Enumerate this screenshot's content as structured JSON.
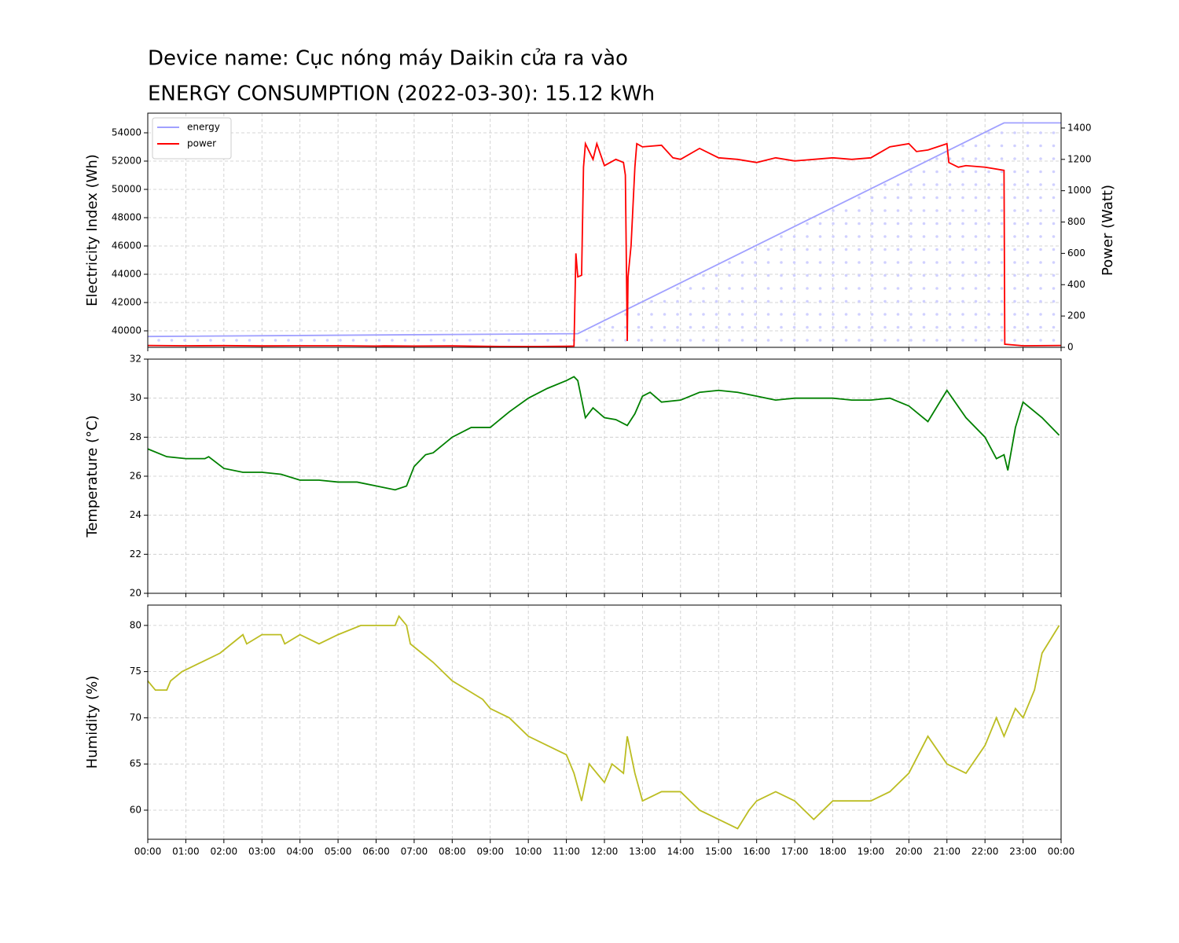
{
  "chart_data": [
    {
      "type": "line",
      "title": "Device name: Cục nóng máy Daikin cửa ra vào",
      "subtitle": "ENERGY CONSUMPTION (2022-03-30): 15.12 kWh",
      "ylabel": "Electricity Index (Wh)",
      "y2label": "Power (Watt)",
      "ylim": [
        38833,
        55389
      ],
      "yticks": [
        40000,
        42000,
        44000,
        46000,
        48000,
        50000,
        52000,
        54000
      ],
      "y2lim": [
        0,
        1495
      ],
      "y2ticks": [
        0,
        200,
        400,
        600,
        800,
        1000,
        1200,
        1400
      ],
      "grid": true,
      "legend": "upper-left",
      "series": [
        {
          "name": "energy",
          "color": "#a0a0ff",
          "hatch": "dots",
          "x": [
            0,
            11.3,
            22.5,
            24
          ],
          "values": [
            39600,
            39800,
            54700,
            54700
          ]
        },
        {
          "name": "power",
          "color": "#ff0000",
          "axis": "y2",
          "x": [
            0,
            1,
            2,
            3,
            4,
            5,
            6,
            6.2,
            7,
            8,
            9,
            10,
            11,
            11.2,
            11.25,
            11.3,
            11.4,
            11.45,
            11.5,
            11.7,
            11.8,
            12,
            12.3,
            12.5,
            12.55,
            12.6,
            12.62,
            12.7,
            12.8,
            12.85,
            13,
            13.5,
            13.8,
            14,
            14.5,
            15,
            15.5,
            16,
            16.5,
            17,
            17.5,
            18,
            18.5,
            19,
            19.5,
            20,
            20.2,
            20.5,
            21,
            21.05,
            21.3,
            21.5,
            22,
            22.5,
            22.52,
            23,
            24
          ],
          "values": [
            12,
            10,
            11,
            9,
            10,
            10,
            8,
            9,
            8,
            9,
            6,
            5,
            7,
            8,
            600,
            450,
            460,
            1150,
            1300,
            1200,
            1300,
            1160,
            1200,
            1180,
            1100,
            40,
            450,
            650,
            1150,
            1300,
            1280,
            1290,
            1210,
            1200,
            1270,
            1210,
            1200,
            1180,
            1210,
            1190,
            1200,
            1210,
            1200,
            1210,
            1280,
            1300,
            1250,
            1260,
            1300,
            1180,
            1150,
            1160,
            1150,
            1130,
            20,
            10,
            12
          ]
        }
      ]
    },
    {
      "type": "line",
      "ylabel": "Temperature (°C)",
      "ylim": [
        20,
        32
      ],
      "yticks": [
        20,
        22,
        24,
        26,
        28,
        30,
        32
      ],
      "grid": true,
      "series": [
        {
          "color": "#008000",
          "x": [
            0,
            0.5,
            1,
            1.5,
            1.6,
            2,
            2.5,
            3,
            3.5,
            4,
            4.5,
            5,
            5.5,
            6,
            6.5,
            6.8,
            7,
            7.3,
            7.5,
            8,
            8.5,
            9,
            9.5,
            10,
            10.5,
            11,
            11.2,
            11.3,
            11.5,
            11.7,
            12,
            12.3,
            12.6,
            12.8,
            13,
            13.2,
            13.5,
            14,
            14.5,
            15,
            15.5,
            16,
            16.5,
            17,
            17.5,
            18,
            18.5,
            19,
            19.5,
            20,
            20.5,
            21,
            21.5,
            22,
            22.3,
            22.5,
            22.6,
            22.8,
            23,
            23.5,
            23.95
          ],
          "values": [
            27.4,
            27.0,
            26.9,
            26.9,
            27.0,
            26.4,
            26.2,
            26.2,
            26.1,
            25.8,
            25.8,
            25.7,
            25.7,
            25.5,
            25.3,
            25.5,
            26.5,
            27.1,
            27.2,
            28.0,
            28.5,
            28.5,
            29.3,
            30.0,
            30.5,
            30.9,
            31.1,
            30.9,
            29.0,
            29.5,
            29.0,
            28.9,
            28.6,
            29.2,
            30.1,
            30.3,
            29.8,
            29.9,
            30.3,
            30.4,
            30.3,
            30.1,
            29.9,
            30.0,
            30.0,
            30.0,
            29.9,
            29.9,
            30.0,
            29.6,
            28.8,
            30.4,
            29.0,
            28.0,
            26.9,
            27.1,
            26.3,
            28.5,
            29.8,
            29.0,
            28.1
          ]
        }
      ]
    },
    {
      "type": "line",
      "ylabel": "Humidity (%)",
      "ylim": [
        56.85,
        82.2
      ],
      "yticks": [
        60,
        65,
        70,
        75,
        80
      ],
      "grid": true,
      "xlim": [
        0,
        24
      ],
      "xticks": [
        {
          "value": 0,
          "label": "00:00"
        },
        {
          "value": 1,
          "label": "01:00"
        },
        {
          "value": 2,
          "label": "02:00"
        },
        {
          "value": 3,
          "label": "03:00"
        },
        {
          "value": 4,
          "label": "04:00"
        },
        {
          "value": 5,
          "label": "05:00"
        },
        {
          "value": 6,
          "label": "06:00"
        },
        {
          "value": 7,
          "label": "07:00"
        },
        {
          "value": 8,
          "label": "08:00"
        },
        {
          "value": 9,
          "label": "09:00"
        },
        {
          "value": 10,
          "label": "10:00"
        },
        {
          "value": 11,
          "label": "11:00"
        },
        {
          "value": 12,
          "label": "12:00"
        },
        {
          "value": 13,
          "label": "13:00"
        },
        {
          "value": 14,
          "label": "14:00"
        },
        {
          "value": 15,
          "label": "15:00"
        },
        {
          "value": 16,
          "label": "16:00"
        },
        {
          "value": 17,
          "label": "17:00"
        },
        {
          "value": 18,
          "label": "18:00"
        },
        {
          "value": 19,
          "label": "19:00"
        },
        {
          "value": 20,
          "label": "20:00"
        },
        {
          "value": 21,
          "label": "21:00"
        },
        {
          "value": 22,
          "label": "22:00"
        },
        {
          "value": 23,
          "label": "23:00"
        },
        {
          "value": 24,
          "label": "00:00"
        }
      ],
      "series": [
        {
          "color": "#bcbd22",
          "x": [
            0,
            0.2,
            0.5,
            0.6,
            0.9,
            1.4,
            1.9,
            2.2,
            2.5,
            2.6,
            3,
            3.5,
            3.6,
            4,
            4.5,
            5,
            5.6,
            6.5,
            6.6,
            6.8,
            6.9,
            7.2,
            7.5,
            8,
            8.4,
            8.8,
            9,
            9.5,
            10,
            10.5,
            11,
            11.2,
            11.4,
            11.6,
            12,
            12.2,
            12.5,
            12.6,
            12.8,
            13,
            13.5,
            14,
            14.5,
            15,
            15.5,
            15.8,
            16,
            16.5,
            17,
            17.5,
            18,
            18.5,
            19,
            19.5,
            20,
            20.5,
            21,
            21.5,
            22,
            22.3,
            22.5,
            22.8,
            23,
            23.3,
            23.5,
            23.8,
            23.95
          ],
          "values": [
            74,
            73,
            73,
            74,
            75,
            76,
            77,
            78,
            79,
            78,
            79,
            79,
            78,
            79,
            78,
            79,
            80,
            80,
            81,
            80,
            78,
            77,
            76,
            74,
            73,
            72,
            71,
            70,
            68,
            67,
            66,
            64,
            61,
            65,
            63,
            65,
            64,
            68,
            64,
            61,
            62,
            62,
            60,
            59,
            58,
            60,
            61,
            62,
            61,
            59,
            61,
            61,
            61,
            62,
            64,
            68,
            65,
            64,
            67,
            70,
            68,
            71,
            70,
            73,
            77,
            79,
            80
          ]
        }
      ]
    }
  ]
}
